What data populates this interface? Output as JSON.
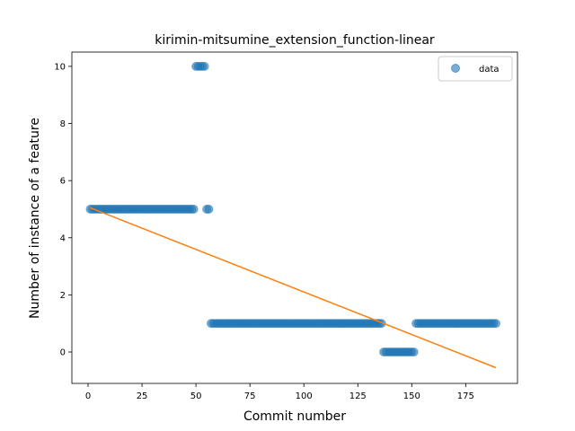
{
  "chart_data": {
    "type": "scatter",
    "title": "kirimin-mitsumine_extension_function-linear",
    "xlabel": "Commit number",
    "ylabel": "Number of instance of a feature",
    "xlim": [
      -7.5,
      199
    ],
    "ylim": [
      -1.1,
      10.5
    ],
    "xticks": [
      0,
      25,
      50,
      75,
      100,
      125,
      150,
      175
    ],
    "yticks": [
      0,
      2,
      4,
      6,
      8,
      10
    ],
    "grid": false,
    "legend_position": "top-right",
    "colors": {
      "data": "#1f77b4",
      "fit": "#ff7f0e"
    },
    "series": [
      {
        "name": "data",
        "kind": "scatter",
        "segments": [
          {
            "x_start": 1,
            "x_end": 49,
            "y": 5
          },
          {
            "x_start": 50,
            "x_end": 54,
            "y": 10
          },
          {
            "x_start": 55,
            "x_end": 56,
            "y": 5
          },
          {
            "x_start": 57,
            "x_end": 136,
            "y": 1
          },
          {
            "x_start": 137,
            "x_end": 151,
            "y": 0
          },
          {
            "x_start": 152,
            "x_end": 189,
            "y": 1
          }
        ]
      },
      {
        "kind": "line",
        "x": [
          1,
          189
        ],
        "y": [
          5.05,
          -0.55
        ]
      }
    ]
  }
}
